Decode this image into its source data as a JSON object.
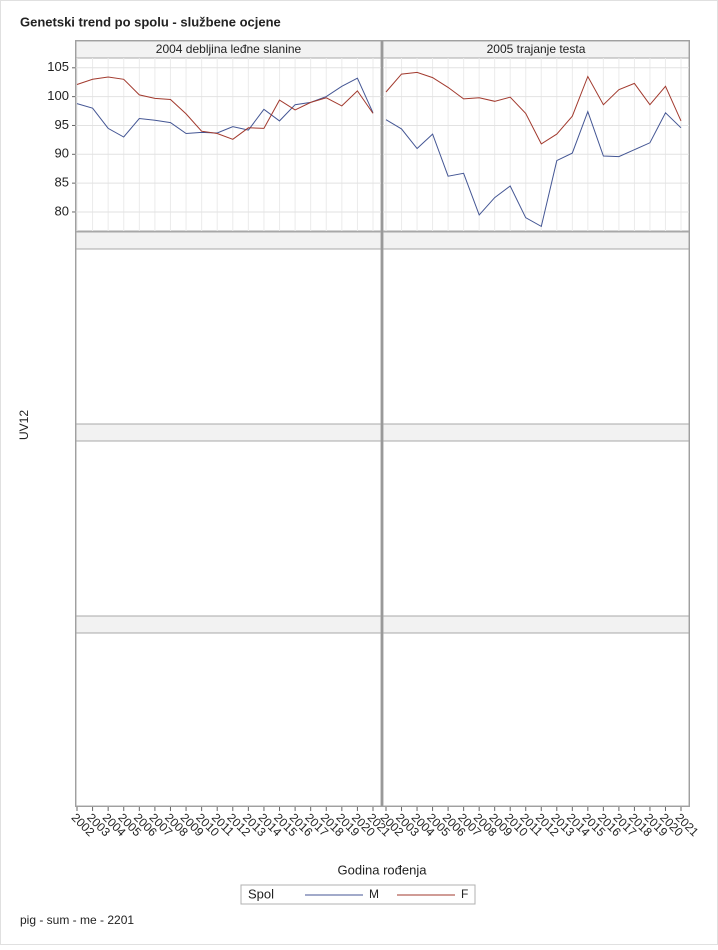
{
  "title": "Genetski trend po spolu - službene ocjene",
  "y_label": "UV12",
  "x_label": "Godina rođenja",
  "legend_title": "Spol",
  "footnote": "pig - sum - me - 2201",
  "chart_data": [
    {
      "type": "line",
      "title": "2004 debljina leđne slanine",
      "categories": [
        "2002",
        "2003",
        "2004",
        "2005",
        "2006",
        "2007",
        "2008",
        "2009",
        "2010",
        "2011",
        "2012",
        "2013",
        "2014",
        "2015",
        "2016",
        "2017",
        "2018",
        "2019",
        "2020",
        "2021"
      ],
      "series": [
        {
          "name": "M",
          "color": "#445694",
          "values": [
            98.8,
            98.0,
            94.5,
            93.0,
            96.2,
            95.9,
            95.5,
            93.6,
            93.8,
            93.7,
            94.8,
            94.2,
            97.8,
            95.8,
            98.6,
            99.0,
            100.0,
            101.8,
            103.2,
            97.2
          ]
        },
        {
          "name": "F",
          "color": "#a23a2e",
          "values": [
            102.1,
            103.0,
            103.4,
            103.0,
            100.3,
            99.7,
            99.5,
            97.0,
            94.0,
            93.6,
            92.6,
            94.6,
            94.5,
            99.4,
            97.7,
            99.0,
            99.8,
            98.4,
            101.0,
            97.1
          ]
        }
      ],
      "ylim": [
        76.7,
        106.7
      ],
      "yticks": [
        80,
        85,
        90,
        95,
        100,
        105
      ],
      "grid": true
    },
    {
      "type": "line",
      "title": "2005 trajanje testa",
      "categories": [
        "2002",
        "2003",
        "2004",
        "2005",
        "2006",
        "2007",
        "2008",
        "2009",
        "2010",
        "2011",
        "2012",
        "2013",
        "2014",
        "2015",
        "2016",
        "2017",
        "2018",
        "2019",
        "2020",
        "2021"
      ],
      "series": [
        {
          "name": "M",
          "color": "#445694",
          "values": [
            96.0,
            94.4,
            91.0,
            93.5,
            86.2,
            86.7,
            79.5,
            82.5,
            84.5,
            79.0,
            77.5,
            88.9,
            90.2,
            97.4,
            89.7,
            89.6,
            90.8,
            92.0,
            97.2,
            94.6
          ]
        },
        {
          "name": "F",
          "color": "#a23a2e",
          "values": [
            100.8,
            103.9,
            104.2,
            103.3,
            101.6,
            99.6,
            99.8,
            99.2,
            99.9,
            97.1,
            91.8,
            93.5,
            96.6,
            103.5,
            98.6,
            101.2,
            102.3,
            98.6,
            101.8,
            95.8
          ]
        }
      ],
      "ylim": [
        76.7,
        106.7
      ],
      "yticks": [
        80,
        85,
        90,
        95,
        100,
        105
      ],
      "grid": true
    }
  ]
}
